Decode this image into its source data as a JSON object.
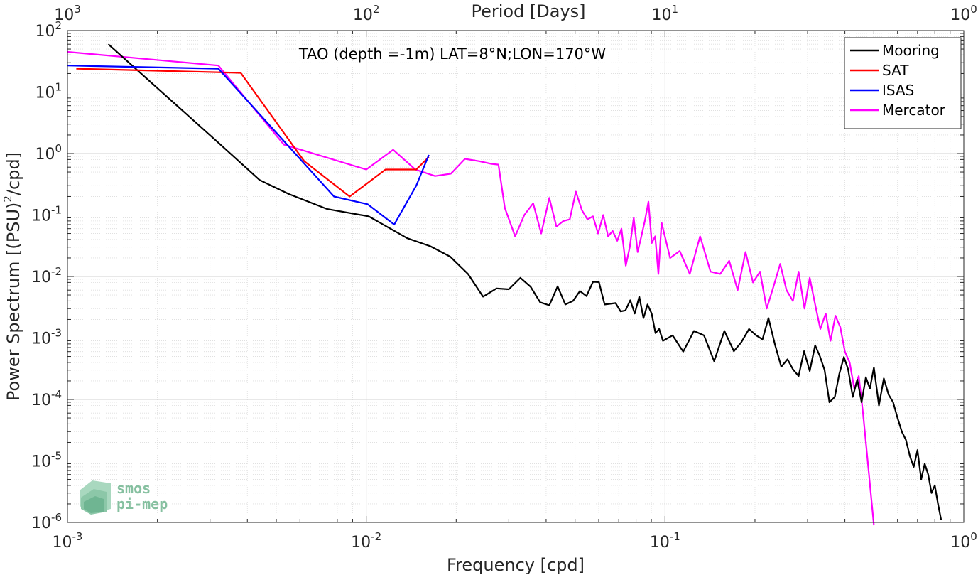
{
  "chart_data": {
    "type": "line",
    "title": "TAO (depth =-1m) LAT=8°N;LON=170°W",
    "xlabel": "Frequency [cpd]",
    "ylabel": "Power Spectrum [(PSU)²/cpd]",
    "ylabel_parts": {
      "before": "Power Spectrum [(PSU)",
      "sup": "2",
      "after": "/cpd]"
    },
    "x2label": "Period [Days]",
    "xscale": "log",
    "yscale": "log",
    "xlim": [
      0.001,
      1
    ],
    "ylim": [
      1e-06,
      100
    ],
    "grid": true,
    "legend_position": "top-right",
    "x_ticks": [
      {
        "value": 0.001,
        "base": "10",
        "exp": "-3"
      },
      {
        "value": 0.01,
        "base": "10",
        "exp": "-2"
      },
      {
        "value": 0.1,
        "base": "10",
        "exp": "-1"
      },
      {
        "value": 1,
        "base": "10",
        "exp": "0"
      }
    ],
    "y_ticks": [
      {
        "value": 100,
        "base": "10",
        "exp": "2"
      },
      {
        "value": 10,
        "base": "10",
        "exp": "1"
      },
      {
        "value": 1,
        "base": "10",
        "exp": "0"
      },
      {
        "value": 0.1,
        "base": "10",
        "exp": "-1"
      },
      {
        "value": 0.01,
        "base": "10",
        "exp": "-2"
      },
      {
        "value": 0.001,
        "base": "10",
        "exp": "-3"
      },
      {
        "value": 0.0001,
        "base": "10",
        "exp": "-4"
      },
      {
        "value": 1e-05,
        "base": "10",
        "exp": "-5"
      },
      {
        "value": 1e-06,
        "base": "10",
        "exp": "-6"
      }
    ],
    "top_ticks": [
      {
        "value": 0.001,
        "base": "10",
        "exp": "3"
      },
      {
        "value": 0.01,
        "base": "10",
        "exp": "2"
      },
      {
        "value": 0.1,
        "base": "10",
        "exp": "1"
      },
      {
        "value": 1,
        "base": "10",
        "exp": "0"
      }
    ],
    "series": [
      {
        "name": "Mooring",
        "color": "#000000",
        "x": [
          0.00137,
          0.0032,
          0.0044,
          0.0055,
          0.0074,
          0.0102,
          0.0137,
          0.0164,
          0.0191,
          0.0219,
          0.0246,
          0.0273,
          0.03,
          0.0328,
          0.0355,
          0.0382,
          0.041,
          0.0437,
          0.0464,
          0.0492,
          0.0519,
          0.0546,
          0.0574,
          0.0601,
          0.0628,
          0.0656,
          0.0683,
          0.071,
          0.0737,
          0.0765,
          0.0792,
          0.082,
          0.0847,
          0.0874,
          0.0902,
          0.0929,
          0.0956,
          0.0984,
          0.106,
          0.115,
          0.125,
          0.135,
          0.146,
          0.158,
          0.17,
          0.18,
          0.191,
          0.202,
          0.212,
          0.222,
          0.233,
          0.245,
          0.257,
          0.268,
          0.28,
          0.292,
          0.305,
          0.318,
          0.33,
          0.342,
          0.355,
          0.37,
          0.383,
          0.397,
          0.41,
          0.425,
          0.44,
          0.455,
          0.47,
          0.485,
          0.5,
          0.52,
          0.54,
          0.56,
          0.58,
          0.6,
          0.62,
          0.64,
          0.66,
          0.68,
          0.7,
          0.72,
          0.74,
          0.76,
          0.78,
          0.8,
          0.82,
          0.84
        ],
        "y": [
          60,
          1.5,
          0.37,
          0.22,
          0.125,
          0.095,
          0.042,
          0.031,
          0.021,
          0.011,
          0.0047,
          0.0064,
          0.0062,
          0.0095,
          0.0068,
          0.0038,
          0.0034,
          0.0069,
          0.0035,
          0.004,
          0.0058,
          0.0048,
          0.0082,
          0.0081,
          0.0035,
          0.0036,
          0.0037,
          0.0027,
          0.0028,
          0.0041,
          0.0025,
          0.0047,
          0.0021,
          0.0035,
          0.0025,
          0.0012,
          0.0014,
          0.0009,
          0.0011,
          0.0006,
          0.0013,
          0.0011,
          0.00042,
          0.0013,
          0.00061,
          0.00085,
          0.0014,
          0.0011,
          0.00095,
          0.0021,
          0.0008,
          0.00034,
          0.00045,
          0.00031,
          0.00024,
          0.00061,
          0.00029,
          0.00076,
          0.0005,
          0.0003,
          9e-05,
          0.00011,
          0.00026,
          0.00049,
          0.00031,
          0.00011,
          0.00021,
          9e-05,
          0.00023,
          0.00015,
          0.00033,
          8e-05,
          0.00022,
          0.00012,
          9e-05,
          5e-05,
          3e-05,
          2.2e-05,
          1.2e-05,
          8e-06,
          1.5e-05,
          5e-06,
          9e-06,
          6e-06,
          3e-06,
          4e-06,
          2e-06,
          1.1e-06
        ]
      },
      {
        "name": "SAT",
        "color": "#ff0000",
        "x": [
          0.00107,
          0.0038,
          0.0062,
          0.0088,
          0.0116,
          0.0147,
          0.0162
        ],
        "y": [
          24,
          20.5,
          0.75,
          0.2,
          0.55,
          0.55,
          0.88
        ]
      },
      {
        "name": "ISAS",
        "color": "#0000ff",
        "x": [
          0.001,
          0.0032,
          0.0078,
          0.0101,
          0.0124,
          0.0147,
          0.0162
        ],
        "y": [
          27,
          24,
          0.2,
          0.15,
          0.07,
          0.3,
          0.95
        ]
      },
      {
        "name": "Mercator",
        "color": "#ff00ff",
        "x": [
          0.001,
          0.0032,
          0.0053,
          0.01,
          0.0123,
          0.0146,
          0.017,
          0.0192,
          0.0214,
          0.0239,
          0.0262,
          0.0277,
          0.0291,
          0.0315,
          0.0338,
          0.0362,
          0.0385,
          0.041,
          0.0433,
          0.0457,
          0.048,
          0.0503,
          0.0527,
          0.055,
          0.0574,
          0.0597,
          0.0621,
          0.0645,
          0.0668,
          0.0692,
          0.0715,
          0.0739,
          0.0762,
          0.0786,
          0.081,
          0.0833,
          0.0856,
          0.088,
          0.0903,
          0.0927,
          0.095,
          0.0974,
          0.104,
          0.112,
          0.121,
          0.131,
          0.142,
          0.153,
          0.164,
          0.175,
          0.186,
          0.197,
          0.208,
          0.219,
          0.231,
          0.243,
          0.255,
          0.268,
          0.28,
          0.293,
          0.305,
          0.318,
          0.331,
          0.345,
          0.358,
          0.372,
          0.386,
          0.4,
          0.415,
          0.43,
          0.445,
          0.46,
          0.475,
          0.49,
          0.5
        ],
        "y": [
          45,
          27,
          1.4,
          0.55,
          1.15,
          0.55,
          0.43,
          0.47,
          0.82,
          0.75,
          0.68,
          0.66,
          0.13,
          0.045,
          0.1,
          0.155,
          0.05,
          0.19,
          0.065,
          0.08,
          0.085,
          0.24,
          0.12,
          0.085,
          0.095,
          0.05,
          0.1,
          0.045,
          0.055,
          0.038,
          0.06,
          0.015,
          0.03,
          0.09,
          0.025,
          0.045,
          0.08,
          0.165,
          0.035,
          0.045,
          0.011,
          0.075,
          0.02,
          0.026,
          0.011,
          0.045,
          0.012,
          0.011,
          0.018,
          0.006,
          0.025,
          0.008,
          0.012,
          0.003,
          0.007,
          0.016,
          0.006,
          0.004,
          0.012,
          0.003,
          0.0095,
          0.0035,
          0.0014,
          0.0025,
          0.0009,
          0.0023,
          0.0015,
          0.0006,
          0.0004,
          0.00015,
          0.00024,
          6e-05,
          1.2e-05,
          2.5e-06,
          9e-07
        ]
      }
    ]
  },
  "logo": {
    "line1": "smos",
    "line2": "pi-mep"
  }
}
